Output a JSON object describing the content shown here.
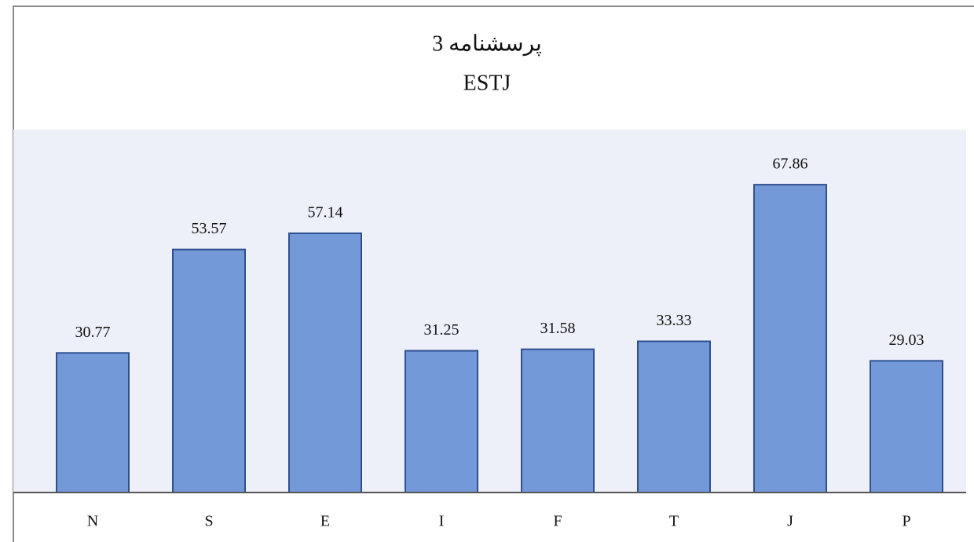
{
  "chart_data": {
    "type": "bar",
    "title": "پرسشنامه 3",
    "subtitle": "ESTJ",
    "categories": [
      "N",
      "S",
      "E",
      "I",
      "F",
      "T",
      "J",
      "P"
    ],
    "values": [
      30.77,
      53.57,
      57.14,
      31.25,
      31.58,
      33.33,
      67.86,
      29.03
    ],
    "color": "#7499d8",
    "edge_color": "#2f4f8f",
    "background": "#eef0f9",
    "ylim": [
      0,
      80
    ]
  }
}
